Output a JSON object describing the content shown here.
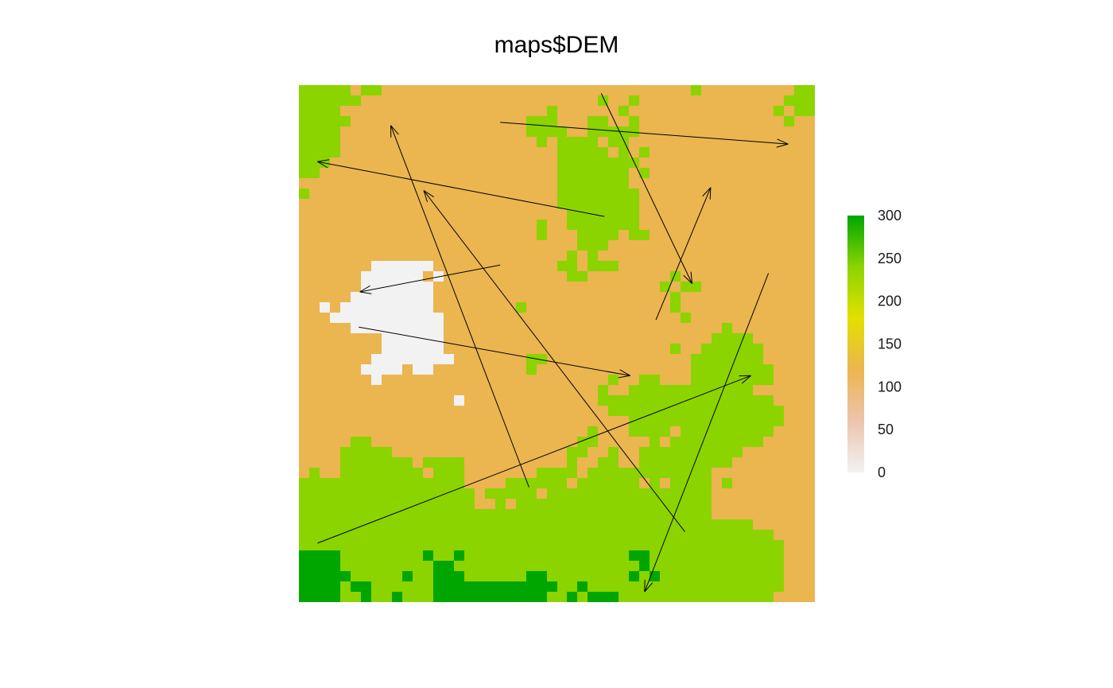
{
  "title": "maps$DEM",
  "legend": {
    "ticks": [
      0,
      50,
      100,
      150,
      200,
      250,
      300
    ],
    "range": [
      0,
      300
    ],
    "colors": [
      "#f2f2f2",
      "#edc4ad",
      "#ebb550",
      "#e3e000",
      "#8bd400",
      "#00a600"
    ]
  },
  "classes": {
    "W": {
      "color": "#f2f2f2"
    },
    "T": {
      "color": "#ebb550"
    },
    "G": {
      "color": "#8bd400"
    },
    "D": {
      "color": "#00a600"
    }
  },
  "grid": {
    "cols": 50,
    "rows": 50,
    "base": "T",
    "rects": [
      [
        "G",
        0,
        0,
        5,
        1
      ],
      [
        "G",
        0,
        1,
        5,
        2
      ],
      [
        "G",
        0,
        2,
        4,
        3
      ],
      [
        "G",
        0,
        3,
        5,
        4
      ],
      [
        "G",
        0,
        4,
        4,
        5
      ],
      [
        "G",
        0,
        5,
        4,
        7
      ],
      [
        "G",
        0,
        7,
        3,
        8
      ],
      [
        "G",
        0,
        8,
        2,
        9
      ],
      [
        "G",
        0,
        10,
        1,
        11
      ],
      [
        "G",
        6,
        0,
        8,
        1
      ],
      [
        "G",
        5,
        1,
        6,
        2
      ],
      [
        "G",
        38,
        0,
        39,
        1
      ],
      [
        "G",
        48,
        0,
        50,
        1
      ],
      [
        "G",
        47,
        1,
        50,
        2
      ],
      [
        "G",
        46,
        2,
        47,
        3
      ],
      [
        "G",
        48,
        2,
        50,
        3
      ],
      [
        "G",
        47,
        3,
        48,
        4
      ],
      [
        "G",
        29,
        1,
        30,
        2
      ],
      [
        "G",
        32,
        1,
        33,
        2
      ],
      [
        "G",
        24,
        2,
        25,
        3
      ],
      [
        "G",
        31,
        2,
        32,
        3
      ],
      [
        "G",
        22,
        3,
        25,
        4
      ],
      [
        "G",
        28,
        3,
        30,
        4
      ],
      [
        "G",
        32,
        3,
        33,
        4
      ],
      [
        "G",
        22,
        4,
        26,
        5
      ],
      [
        "G",
        28,
        4,
        33,
        5
      ],
      [
        "G",
        23,
        5,
        24,
        6
      ],
      [
        "G",
        25,
        5,
        29,
        6
      ],
      [
        "G",
        30,
        5,
        32,
        6
      ],
      [
        "G",
        25,
        6,
        30,
        7
      ],
      [
        "G",
        31,
        6,
        32,
        7
      ],
      [
        "G",
        33,
        6,
        34,
        7
      ],
      [
        "G",
        25,
        7,
        33,
        8
      ],
      [
        "G",
        25,
        8,
        32,
        9
      ],
      [
        "G",
        33,
        8,
        34,
        9
      ],
      [
        "G",
        25,
        9,
        32,
        10
      ],
      [
        "G",
        25,
        10,
        33,
        11
      ],
      [
        "G",
        25,
        11,
        33,
        12
      ],
      [
        "G",
        26,
        12,
        33,
        13
      ],
      [
        "G",
        23,
        13,
        24,
        14
      ],
      [
        "G",
        26,
        13,
        33,
        14
      ],
      [
        "G",
        23,
        14,
        24,
        15
      ],
      [
        "G",
        27,
        14,
        31,
        15
      ],
      [
        "G",
        32,
        14,
        34,
        15
      ],
      [
        "G",
        27,
        15,
        30,
        16
      ],
      [
        "G",
        26,
        16,
        27,
        17
      ],
      [
        "G",
        28,
        16,
        29,
        17
      ],
      [
        "G",
        25,
        17,
        27,
        18
      ],
      [
        "G",
        28,
        17,
        31,
        18
      ],
      [
        "G",
        26,
        18,
        28,
        19
      ],
      [
        "G",
        36,
        18,
        37,
        19
      ],
      [
        "G",
        35,
        19,
        36,
        20
      ],
      [
        "G",
        37,
        19,
        39,
        20
      ],
      [
        "G",
        36,
        20,
        37,
        21
      ],
      [
        "G",
        36,
        21,
        37,
        22
      ],
      [
        "G",
        21,
        21,
        22,
        22
      ],
      [
        "G",
        37,
        22,
        38,
        23
      ],
      [
        "G",
        41,
        23,
        42,
        24
      ],
      [
        "G",
        40,
        24,
        44,
        25
      ],
      [
        "G",
        36,
        25,
        37,
        26
      ],
      [
        "G",
        39,
        25,
        45,
        26
      ],
      [
        "G",
        38,
        26,
        45,
        27
      ],
      [
        "G",
        22,
        26,
        24,
        27
      ],
      [
        "G",
        38,
        27,
        46,
        28
      ],
      [
        "G",
        22,
        27,
        23,
        28
      ],
      [
        "G",
        38,
        28,
        46,
        29
      ],
      [
        "G",
        30,
        28,
        31,
        29
      ],
      [
        "G",
        33,
        28,
        35,
        29
      ],
      [
        "G",
        32,
        29,
        44,
        30
      ],
      [
        "G",
        29,
        29,
        30,
        30
      ],
      [
        "G",
        30,
        30,
        46,
        31
      ],
      [
        "G",
        29,
        30,
        30,
        31
      ],
      [
        "G",
        30,
        31,
        47,
        32
      ],
      [
        "G",
        32,
        32,
        47,
        33
      ],
      [
        "G",
        32,
        33,
        36,
        34
      ],
      [
        "G",
        37,
        33,
        46,
        34
      ],
      [
        "G",
        34,
        34,
        35,
        35
      ],
      [
        "G",
        36,
        34,
        45,
        35
      ],
      [
        "G",
        28,
        33,
        29,
        34
      ],
      [
        "G",
        27,
        34,
        29,
        35
      ],
      [
        "G",
        26,
        35,
        28,
        36
      ],
      [
        "G",
        30,
        35,
        31,
        36
      ],
      [
        "G",
        33,
        35,
        43,
        36
      ],
      [
        "G",
        5,
        34,
        7,
        35
      ],
      [
        "G",
        29,
        36,
        31,
        37
      ],
      [
        "G",
        33,
        36,
        42,
        37
      ],
      [
        "G",
        4,
        35,
        9,
        36
      ],
      [
        "G",
        26,
        36,
        27,
        37
      ],
      [
        "G",
        4,
        36,
        11,
        37
      ],
      [
        "G",
        12,
        36,
        16,
        37
      ],
      [
        "G",
        25,
        37,
        27,
        38
      ],
      [
        "G",
        28,
        37,
        40,
        38
      ],
      [
        "G",
        1,
        37,
        2,
        38
      ],
      [
        "G",
        4,
        37,
        12,
        38
      ],
      [
        "G",
        13,
        37,
        16,
        38
      ],
      [
        "G",
        0,
        38,
        16,
        39
      ],
      [
        "G",
        23,
        37,
        25,
        38
      ],
      [
        "G",
        20,
        38,
        40,
        39
      ],
      [
        "G",
        41,
        38,
        42,
        39
      ],
      [
        "G",
        0,
        39,
        17,
        40
      ],
      [
        "G",
        18,
        39,
        40,
        40
      ],
      [
        "G",
        0,
        40,
        17,
        41
      ],
      [
        "G",
        19,
        40,
        20,
        41
      ],
      [
        "G",
        21,
        40,
        40,
        41
      ],
      [
        "G",
        0,
        41,
        40,
        42
      ],
      [
        "G",
        0,
        42,
        44,
        43
      ],
      [
        "G",
        0,
        43,
        46,
        44
      ],
      [
        "G",
        0,
        44,
        47,
        47
      ],
      [
        "G",
        0,
        47,
        47,
        49
      ],
      [
        "G",
        0,
        49,
        46,
        50
      ],
      [
        "W",
        7,
        17,
        13,
        18
      ],
      [
        "W",
        6,
        18,
        12,
        19
      ],
      [
        "W",
        13,
        18,
        14,
        19
      ],
      [
        "W",
        6,
        19,
        13,
        20
      ],
      [
        "W",
        5,
        20,
        13,
        21
      ],
      [
        "W",
        2,
        21,
        3,
        22
      ],
      [
        "W",
        4,
        21,
        13,
        22
      ],
      [
        "W",
        3,
        22,
        14,
        23
      ],
      [
        "W",
        5,
        23,
        14,
        24
      ],
      [
        "W",
        8,
        24,
        14,
        25
      ],
      [
        "W",
        8,
        25,
        14,
        26
      ],
      [
        "W",
        7,
        26,
        14,
        27
      ],
      [
        "W",
        14,
        26,
        15,
        27
      ],
      [
        "W",
        6,
        27,
        7,
        28
      ],
      [
        "W",
        7,
        27,
        10,
        28
      ],
      [
        "W",
        11,
        27,
        13,
        28
      ],
      [
        "W",
        7,
        28,
        8,
        29
      ],
      [
        "W",
        15,
        30,
        16,
        31
      ],
      [
        "T",
        26,
        38,
        27,
        39
      ],
      [
        "T",
        23,
        39,
        24,
        40
      ],
      [
        "T",
        33,
        38,
        34,
        39
      ],
      [
        "T",
        35,
        38,
        36,
        39
      ],
      [
        "D",
        0,
        45,
        4,
        50
      ],
      [
        "D",
        4,
        47,
        5,
        48
      ],
      [
        "D",
        5,
        48,
        7,
        49
      ],
      [
        "D",
        6,
        49,
        7,
        50
      ],
      [
        "D",
        12,
        45,
        13,
        46
      ],
      [
        "D",
        13,
        46,
        15,
        47
      ],
      [
        "D",
        15,
        45,
        16,
        46
      ],
      [
        "D",
        13,
        47,
        16,
        48
      ],
      [
        "D",
        13,
        48,
        18,
        49
      ],
      [
        "D",
        13,
        49,
        24,
        50
      ],
      [
        "D",
        17,
        48,
        24,
        49
      ],
      [
        "D",
        22,
        47,
        24,
        48
      ],
      [
        "D",
        24,
        48,
        25,
        49
      ],
      [
        "D",
        10,
        47,
        11,
        48
      ],
      [
        "D",
        9,
        49,
        10,
        50
      ],
      [
        "D",
        27,
        48,
        28,
        49
      ],
      [
        "D",
        26,
        49,
        27,
        50
      ],
      [
        "D",
        28,
        49,
        31,
        50
      ],
      [
        "D",
        32,
        45,
        34,
        46
      ],
      [
        "D",
        33,
        46,
        34,
        47
      ],
      [
        "D",
        32,
        47,
        33,
        48
      ],
      [
        "D",
        34,
        47,
        35,
        48
      ]
    ]
  },
  "arrows": [
    {
      "from": [
        29.6,
        12.7
      ],
      "to": [
        1.8,
        7.4
      ]
    },
    {
      "from": [
        22.3,
        38.9
      ],
      "to": [
        8.9,
        3.9
      ]
    },
    {
      "from": [
        37.4,
        43.2
      ],
      "to": [
        12.1,
        10.2
      ]
    },
    {
      "from": [
        19.5,
        17.4
      ],
      "to": [
        5.9,
        20.0
      ]
    },
    {
      "from": [
        5.8,
        23.4
      ],
      "to": [
        32.1,
        28.1
      ]
    },
    {
      "from": [
        1.8,
        44.3
      ],
      "to": [
        43.8,
        28.1
      ]
    },
    {
      "from": [
        45.5,
        18.2
      ],
      "to": [
        33.5,
        49.0
      ]
    },
    {
      "from": [
        34.6,
        22.7
      ],
      "to": [
        39.9,
        9.9
      ]
    },
    {
      "from": [
        29.3,
        0.8
      ],
      "to": [
        38.1,
        19.2
      ]
    },
    {
      "from": [
        19.5,
        3.6
      ],
      "to": [
        47.4,
        5.7
      ]
    }
  ]
}
